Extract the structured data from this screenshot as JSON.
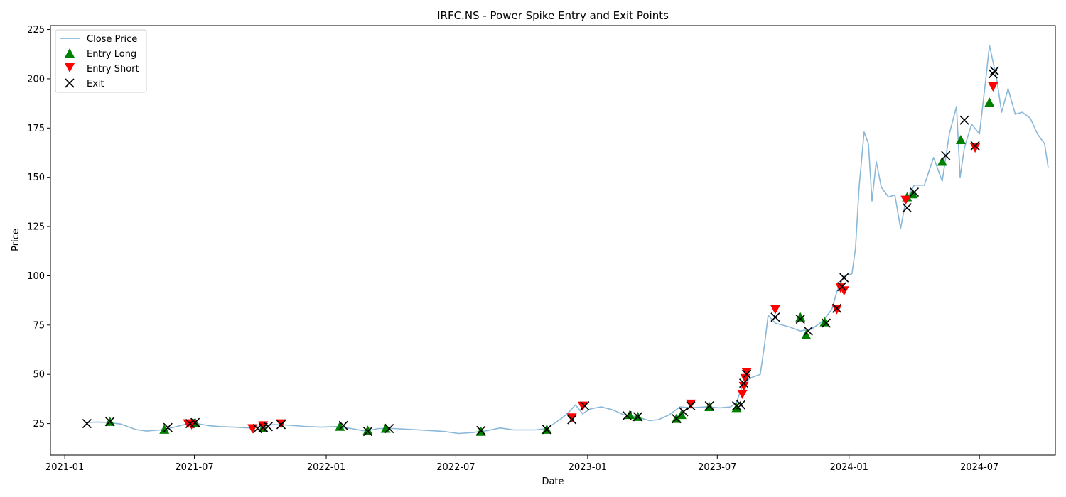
{
  "chart_data": {
    "type": "line",
    "title": "IRFC.NS - Power Spike Entry and Exit Points",
    "xlabel": "Date",
    "ylabel": "Price",
    "xlim": [
      "2020-12-12",
      "2024-10-15"
    ],
    "ylim": [
      9,
      227
    ],
    "x_ticks": [
      "2021-01",
      "2021-07",
      "2022-01",
      "2022-07",
      "2023-01",
      "2023-07",
      "2024-01",
      "2024-07"
    ],
    "y_ticks": [
      25,
      50,
      75,
      100,
      125,
      150,
      175,
      200,
      225
    ],
    "grid": false,
    "legend_position": "top-left",
    "colors": {
      "close_price": "#8ab8d8",
      "entry_long": "#008000",
      "entry_short": "#ff0000",
      "exit": "#000000"
    },
    "series": [
      {
        "name": "Close Price",
        "points": [
          [
            "2021-01-29",
            25.5
          ],
          [
            "2021-02-15",
            25.8
          ],
          [
            "2021-03-01",
            25.6
          ],
          [
            "2021-03-20",
            24.8
          ],
          [
            "2021-04-10",
            22.0
          ],
          [
            "2021-04-25",
            21.2
          ],
          [
            "2021-05-15",
            21.8
          ],
          [
            "2021-06-01",
            23.0
          ],
          [
            "2021-06-20",
            24.8
          ],
          [
            "2021-07-05",
            25.0
          ],
          [
            "2021-07-20",
            24.0
          ],
          [
            "2021-08-05",
            23.5
          ],
          [
            "2021-08-25",
            23.2
          ],
          [
            "2021-09-15",
            22.8
          ],
          [
            "2021-09-30",
            23.5
          ],
          [
            "2021-10-20",
            24.5
          ],
          [
            "2021-11-10",
            24.2
          ],
          [
            "2021-12-01",
            23.6
          ],
          [
            "2021-12-25",
            23.2
          ],
          [
            "2022-01-15",
            23.5
          ],
          [
            "2022-02-05",
            22.5
          ],
          [
            "2022-02-25",
            21.2
          ],
          [
            "2022-03-15",
            22.5
          ],
          [
            "2022-04-05",
            22.5
          ],
          [
            "2022-05-01",
            22.0
          ],
          [
            "2022-05-25",
            21.5
          ],
          [
            "2022-06-15",
            21.0
          ],
          [
            "2022-07-05",
            20.0
          ],
          [
            "2022-07-25",
            20.5
          ],
          [
            "2022-08-15",
            21.5
          ],
          [
            "2022-09-01",
            22.8
          ],
          [
            "2022-09-20",
            21.8
          ],
          [
            "2022-10-20",
            21.8
          ],
          [
            "2022-11-05",
            22.5
          ],
          [
            "2022-11-15",
            25.0
          ],
          [
            "2022-11-25",
            27.5
          ],
          [
            "2022-12-05",
            30.5
          ],
          [
            "2022-12-15",
            34.5
          ],
          [
            "2022-12-25",
            30.0
          ],
          [
            "2023-01-05",
            32.5
          ],
          [
            "2023-01-20",
            33.5
          ],
          [
            "2023-02-05",
            32.0
          ],
          [
            "2023-02-20",
            29.5
          ],
          [
            "2023-03-10",
            28.5
          ],
          [
            "2023-03-28",
            26.5
          ],
          [
            "2023-04-10",
            27.0
          ],
          [
            "2023-04-25",
            29.5
          ],
          [
            "2023-05-10",
            33.5
          ],
          [
            "2023-05-25",
            33.0
          ],
          [
            "2023-06-15",
            33.5
          ],
          [
            "2023-07-05",
            33.0
          ],
          [
            "2023-07-20",
            33.5
          ],
          [
            "2023-07-28",
            36.0
          ],
          [
            "2023-08-05",
            44.0
          ],
          [
            "2023-08-15",
            48.0
          ],
          [
            "2023-08-30",
            50.0
          ],
          [
            "2023-09-05",
            65.0
          ],
          [
            "2023-09-10",
            80.0
          ],
          [
            "2023-09-20",
            76.0
          ],
          [
            "2023-10-10",
            74.0
          ],
          [
            "2023-10-25",
            72.0
          ],
          [
            "2023-11-10",
            73.0
          ],
          [
            "2023-11-25",
            77.0
          ],
          [
            "2023-12-08",
            83.0
          ],
          [
            "2023-12-15",
            92.0
          ],
          [
            "2023-12-25",
            100.0
          ],
          [
            "2024-01-05",
            101.0
          ],
          [
            "2024-01-10",
            114.0
          ],
          [
            "2024-01-15",
            145.0
          ],
          [
            "2024-01-22",
            173.0
          ],
          [
            "2024-01-28",
            167.0
          ],
          [
            "2024-02-02",
            138.0
          ],
          [
            "2024-02-08",
            158.0
          ],
          [
            "2024-02-15",
            145.0
          ],
          [
            "2024-02-25",
            140.0
          ],
          [
            "2024-03-05",
            141.0
          ],
          [
            "2024-03-13",
            124.0
          ],
          [
            "2024-03-20",
            138.0
          ],
          [
            "2024-04-01",
            146.0
          ],
          [
            "2024-04-15",
            146.0
          ],
          [
            "2024-04-28",
            160.0
          ],
          [
            "2024-05-10",
            148.0
          ],
          [
            "2024-05-20",
            172.0
          ],
          [
            "2024-05-30",
            186.0
          ],
          [
            "2024-06-04",
            150.0
          ],
          [
            "2024-06-10",
            165.0
          ],
          [
            "2024-06-20",
            177.0
          ],
          [
            "2024-07-01",
            172.0
          ],
          [
            "2024-07-10",
            200.0
          ],
          [
            "2024-07-15",
            217.0
          ],
          [
            "2024-07-25",
            200.0
          ],
          [
            "2024-08-01",
            183.0
          ],
          [
            "2024-08-10",
            195.0
          ],
          [
            "2024-08-20",
            182.0
          ],
          [
            "2024-08-30",
            183.0
          ],
          [
            "2024-09-10",
            180.0
          ],
          [
            "2024-09-20",
            172.0
          ],
          [
            "2024-09-30",
            167.0
          ],
          [
            "2024-10-05",
            155.0
          ]
        ]
      },
      {
        "name": "Entry Long",
        "marker": "triangle-up",
        "points": [
          [
            "2021-03-05",
            26.0
          ],
          [
            "2021-05-20",
            22.0
          ],
          [
            "2021-07-02",
            25.5
          ],
          [
            "2021-10-05",
            23.0
          ],
          [
            "2022-01-20",
            23.5
          ],
          [
            "2022-02-28",
            21.5
          ],
          [
            "2022-03-25",
            22.5
          ],
          [
            "2022-08-05",
            21.0
          ],
          [
            "2022-11-05",
            22.0
          ],
          [
            "2023-03-01",
            29.5
          ],
          [
            "2023-03-12",
            28.5
          ],
          [
            "2023-05-05",
            27.5
          ],
          [
            "2023-05-12",
            29.5
          ],
          [
            "2023-06-20",
            33.5
          ],
          [
            "2023-07-28",
            33.0
          ],
          [
            "2023-10-25",
            79.0
          ],
          [
            "2023-11-02",
            70.0
          ],
          [
            "2023-11-28",
            76.5
          ],
          [
            "2024-03-22",
            140.0
          ],
          [
            "2024-03-30",
            141.5
          ],
          [
            "2024-05-10",
            158.0
          ],
          [
            "2024-06-05",
            169.0
          ],
          [
            "2024-07-15",
            188.0
          ]
        ]
      },
      {
        "name": "Entry Short",
        "marker": "triangle-down",
        "points": [
          [
            "2021-06-22",
            25.0
          ],
          [
            "2021-06-27",
            24.5
          ],
          [
            "2021-09-20",
            22.5
          ],
          [
            "2021-10-05",
            24.0
          ],
          [
            "2021-10-30",
            25.0
          ],
          [
            "2022-12-10",
            28.0
          ],
          [
            "2022-12-25",
            34.0
          ],
          [
            "2023-05-25",
            35.0
          ],
          [
            "2023-08-05",
            40.0
          ],
          [
            "2023-08-07",
            44.0
          ],
          [
            "2023-08-09",
            48.0
          ],
          [
            "2023-08-11",
            51.0
          ],
          [
            "2023-09-20",
            83.0
          ],
          [
            "2023-12-15",
            83.0
          ],
          [
            "2023-12-20",
            94.0
          ],
          [
            "2023-12-25",
            92.5
          ],
          [
            "2024-03-20",
            138.5
          ],
          [
            "2024-06-25",
            165.0
          ],
          [
            "2024-07-20",
            196.0
          ]
        ]
      },
      {
        "name": "Exit",
        "marker": "x",
        "points": [
          [
            "2021-02-01",
            25.0
          ],
          [
            "2021-03-05",
            26.0
          ],
          [
            "2021-05-25",
            23.0
          ],
          [
            "2021-06-25",
            25.0
          ],
          [
            "2021-07-02",
            25.5
          ],
          [
            "2021-09-27",
            22.5
          ],
          [
            "2021-10-05",
            23.0
          ],
          [
            "2021-10-12",
            23.5
          ],
          [
            "2021-10-30",
            24.5
          ],
          [
            "2022-01-25",
            24.0
          ],
          [
            "2022-02-28",
            21.0
          ],
          [
            "2022-03-30",
            22.5
          ],
          [
            "2022-08-05",
            21.5
          ],
          [
            "2022-11-05",
            22.0
          ],
          [
            "2022-12-10",
            27.0
          ],
          [
            "2022-12-28",
            34.0
          ],
          [
            "2023-02-25",
            29.0
          ],
          [
            "2023-03-12",
            28.5
          ],
          [
            "2023-05-05",
            27.5
          ],
          [
            "2023-05-15",
            31.0
          ],
          [
            "2023-05-25",
            34.0
          ],
          [
            "2023-06-20",
            34.0
          ],
          [
            "2023-07-28",
            34.0
          ],
          [
            "2023-08-03",
            34.5
          ],
          [
            "2023-08-07",
            45.5
          ],
          [
            "2023-08-11",
            50.0
          ],
          [
            "2023-09-20",
            79.0
          ],
          [
            "2023-10-25",
            78.0
          ],
          [
            "2023-11-05",
            72.0
          ],
          [
            "2023-11-30",
            76.0
          ],
          [
            "2023-12-15",
            83.5
          ],
          [
            "2023-12-22",
            94.5
          ],
          [
            "2023-12-25",
            99.0
          ],
          [
            "2024-03-22",
            134.5
          ],
          [
            "2024-04-01",
            142.5
          ],
          [
            "2024-05-15",
            161.0
          ],
          [
            "2024-06-10",
            179.0
          ],
          [
            "2024-06-25",
            166.0
          ],
          [
            "2024-07-20",
            202.5
          ],
          [
            "2024-07-22",
            204.0
          ]
        ]
      }
    ]
  }
}
